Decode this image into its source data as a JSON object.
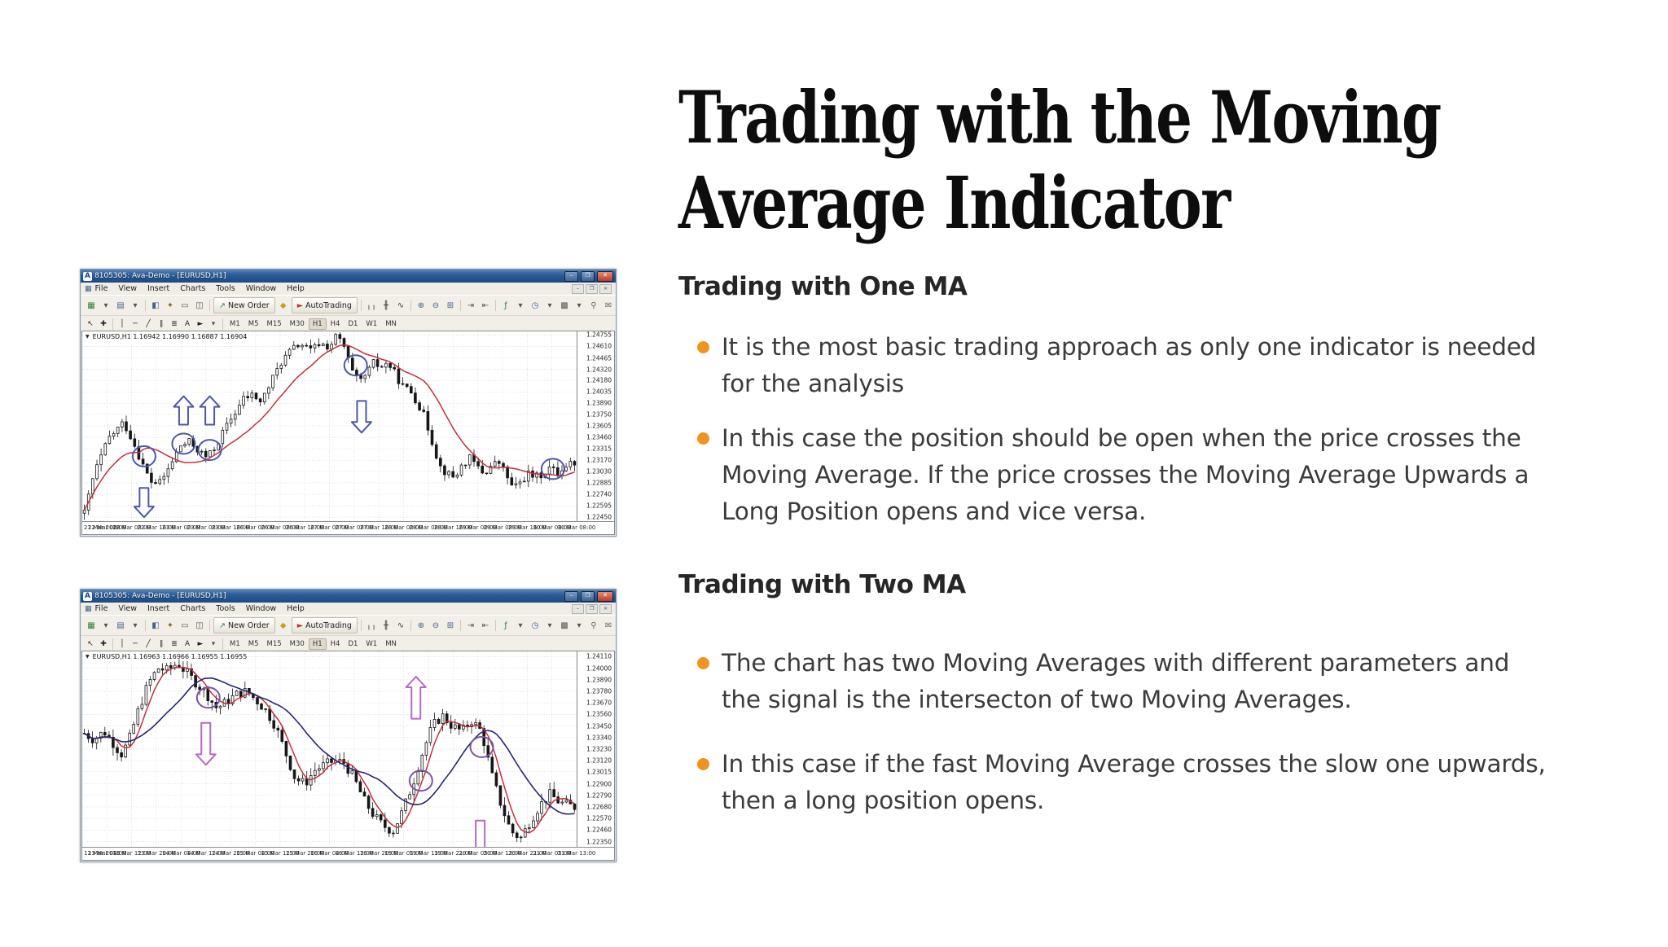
{
  "article": {
    "title": "Trading with the Moving Average Indicator",
    "title_lines": [
      "Trading with the Moving",
      "Average Indicator"
    ],
    "bullet_color": "#f0941f",
    "sections": [
      {
        "heading": "Trading with One MA",
        "bullets": [
          "It is the most basic trading approach as only one indicator is needed for the analysis",
          "In this case the position should be open when the price crosses the Moving Average. If the price crosses the Moving Average Upwards a Long Position opens and vice versa."
        ]
      },
      {
        "heading": "Trading with Two MA",
        "bullets": [
          "The chart has two Moving Averages with different parameters and the signal is the intersecton of two Moving Averages.",
          "In this case if the fast Moving Average crosses the slow one upwards, then a long position opens."
        ]
      }
    ]
  },
  "mt4_common": {
    "menu": [
      "File",
      "View",
      "Insert",
      "Charts",
      "Tools",
      "Window",
      "Help"
    ],
    "mdi_controls": [
      "–",
      "❐",
      "×"
    ],
    "window_controls": [
      "–",
      "❐",
      "×"
    ],
    "timeframes": [
      "M1",
      "M5",
      "M15",
      "M30",
      "H1",
      "H4",
      "D1",
      "W1",
      "MN"
    ],
    "active_timeframe": "H1",
    "toolbar1": [
      {
        "t": "icon",
        "name": "new-chart-icon",
        "glyph": "▦",
        "color": "#2e7d32"
      },
      {
        "t": "icon",
        "name": "dropdown-caret-icon",
        "glyph": "▾",
        "color": "#555555"
      },
      {
        "t": "icon",
        "name": "profiles-icon",
        "glyph": "▤",
        "color": "#44618c"
      },
      {
        "t": "icon",
        "name": "dropdown-caret-icon",
        "glyph": "▾",
        "color": "#555555"
      },
      {
        "t": "sep"
      },
      {
        "t": "icon",
        "name": "market-watch-icon",
        "glyph": "◧",
        "color": "#44618c"
      },
      {
        "t": "icon",
        "name": "navigator-icon",
        "glyph": "✦",
        "color": "#8a6d1c"
      },
      {
        "t": "icon",
        "name": "terminal-icon",
        "glyph": "▭",
        "color": "#555555"
      },
      {
        "t": "icon",
        "name": "strategy-tester-icon",
        "glyph": "◫",
        "color": "#555555"
      },
      {
        "t": "sep"
      },
      {
        "t": "button",
        "name": "new-order-button",
        "label": "New Order",
        "glyph": "↗",
        "glyph_color": "#2e7d32"
      },
      {
        "t": "icon",
        "name": "expert-advisors-icon",
        "glyph": "◆",
        "color": "#c9a21a"
      },
      {
        "t": "button",
        "name": "autotrading-button",
        "label": "AutoTrading",
        "glyph": "►",
        "glyph_color": "#c0392b"
      },
      {
        "t": "sep"
      },
      {
        "t": "icon",
        "name": "bar-chart-icon",
        "glyph": "╷╷",
        "color": "#333333"
      },
      {
        "t": "icon",
        "name": "candlestick-chart-icon",
        "glyph": "╫",
        "color": "#333333"
      },
      {
        "t": "icon",
        "name": "line-chart-icon",
        "glyph": "∿",
        "color": "#333333"
      },
      {
        "t": "sep"
      },
      {
        "t": "icon",
        "name": "zoom-in-icon",
        "glyph": "⊕",
        "color": "#44618c"
      },
      {
        "t": "icon",
        "name": "zoom-out-icon",
        "glyph": "⊖",
        "color": "#44618c"
      },
      {
        "t": "icon",
        "name": "tile-windows-icon",
        "glyph": "⊞",
        "color": "#44618c"
      },
      {
        "t": "sep"
      },
      {
        "t": "icon",
        "name": "auto-scroll-icon",
        "glyph": "⇥",
        "color": "#555555"
      },
      {
        "t": "icon",
        "name": "chart-shift-icon",
        "glyph": "⇤",
        "color": "#555555"
      },
      {
        "t": "sep"
      },
      {
        "t": "icon",
        "name": "indicators-icon",
        "glyph": "ƒ",
        "color": "#2e7d32"
      },
      {
        "t": "icon",
        "name": "dropdown-caret-icon",
        "glyph": "▾",
        "color": "#555555"
      },
      {
        "t": "icon",
        "name": "periods-icon",
        "glyph": "◷",
        "color": "#44618c"
      },
      {
        "t": "icon",
        "name": "dropdown-caret-icon",
        "glyph": "▾",
        "color": "#555555"
      },
      {
        "t": "icon",
        "name": "templates-icon",
        "glyph": "▩",
        "color": "#555555"
      },
      {
        "t": "icon",
        "name": "dropdown-caret-icon",
        "glyph": "▾",
        "color": "#555555"
      },
      {
        "t": "spacer"
      },
      {
        "t": "icon",
        "name": "search-icon",
        "glyph": "⚲",
        "color": "#666666"
      },
      {
        "t": "icon",
        "name": "chat-icon",
        "glyph": "✉",
        "color": "#666666"
      }
    ],
    "toolbar2": [
      {
        "t": "icon",
        "name": "cursor-tool-icon",
        "glyph": "↖",
        "color": "#222222"
      },
      {
        "t": "icon",
        "name": "crosshair-tool-icon",
        "glyph": "✚",
        "color": "#222222"
      },
      {
        "t": "sep"
      },
      {
        "t": "icon",
        "name": "vertical-line-tool-icon",
        "glyph": "│",
        "color": "#222222"
      },
      {
        "t": "icon",
        "name": "horizontal-line-tool-icon",
        "glyph": "─",
        "color": "#222222"
      },
      {
        "t": "icon",
        "name": "trendline-tool-icon",
        "glyph": "╱",
        "color": "#222222"
      },
      {
        "t": "icon",
        "name": "channel-tool-icon",
        "glyph": "∥",
        "color": "#222222"
      },
      {
        "t": "icon",
        "name": "fibonacci-tool-icon",
        "glyph": "≣",
        "color": "#222222"
      },
      {
        "t": "icon",
        "name": "text-tool-icon",
        "glyph": "A",
        "color": "#222222"
      },
      {
        "t": "icon",
        "name": "arrows-tool-icon",
        "glyph": "►",
        "color": "#222222"
      },
      {
        "t": "icon",
        "name": "dropdown-caret-icon",
        "glyph": "▾",
        "color": "#555555"
      },
      {
        "t": "sep"
      }
    ]
  },
  "chart_data": [
    {
      "type": "candlestick",
      "window_title": "8105305: Ava-Demo - [EURUSD,H1]",
      "symbol_line": "EURUSD,H1  1.16942 1.16990 1.16887 1.16904",
      "grid": true,
      "ylim": {
        "top": 1.248,
        "bottom": 1.224
      },
      "yticks": [
        "1.24755",
        "1.24610",
        "1.24465",
        "1.24320",
        "1.24180",
        "1.24035",
        "1.23890",
        "1.23750",
        "1.23605",
        "1.23460",
        "1.23315",
        "1.23170",
        "1.23030",
        "1.22885",
        "1.22740",
        "1.22595",
        "1.22450"
      ],
      "xlabels": [
        "21 Mar 2018",
        "22 Mar 00:00",
        "22 Mar 08:00",
        "22 Mar 16:00",
        "23 Mar 00:00",
        "23 Mar 08:00",
        "23 Mar 16:00",
        "26 Mar 00:00",
        "26 Mar 08:00",
        "26 Mar 16:00",
        "27 Mar 00:00",
        "27 Mar 08:00",
        "27 Mar 16:00",
        "28 Mar 00:00",
        "28 Mar 08:00",
        "28 Mar 16:00",
        "29 Mar 00:00",
        "29 Mar 08:00",
        "29 Mar 16:00",
        "30 Mar 00:00",
        "30 Mar 08:00"
      ],
      "candles": 118,
      "noise": 0.00115,
      "seed": 42,
      "candle_color": "#161616",
      "grid_color": "#d6d6d6",
      "price_keypoints": [
        [
          0.0,
          1.225
        ],
        [
          0.02,
          1.23
        ],
        [
          0.05,
          1.2345
        ],
        [
          0.08,
          1.2365
        ],
        [
          0.1,
          1.234
        ],
        [
          0.12,
          1.231
        ],
        [
          0.135,
          1.229
        ],
        [
          0.155,
          1.2288
        ],
        [
          0.175,
          1.231
        ],
        [
          0.195,
          1.2335
        ],
        [
          0.215,
          1.234
        ],
        [
          0.235,
          1.2328
        ],
        [
          0.25,
          1.232
        ],
        [
          0.265,
          1.2332
        ],
        [
          0.285,
          1.2355
        ],
        [
          0.305,
          1.2375
        ],
        [
          0.325,
          1.2395
        ],
        [
          0.345,
          1.24
        ],
        [
          0.36,
          1.239
        ],
        [
          0.38,
          1.2415
        ],
        [
          0.4,
          1.244
        ],
        [
          0.42,
          1.2455
        ],
        [
          0.44,
          1.2465
        ],
        [
          0.46,
          1.2455
        ],
        [
          0.48,
          1.2465
        ],
        [
          0.5,
          1.246
        ],
        [
          0.515,
          1.2475
        ],
        [
          0.53,
          1.246
        ],
        [
          0.545,
          1.243
        ],
        [
          0.56,
          1.2415
        ],
        [
          0.575,
          1.2425
        ],
        [
          0.59,
          1.244
        ],
        [
          0.605,
          1.2435
        ],
        [
          0.62,
          1.244
        ],
        [
          0.635,
          1.2425
        ],
        [
          0.65,
          1.241
        ],
        [
          0.665,
          1.2405
        ],
        [
          0.68,
          1.239
        ],
        [
          0.695,
          1.237
        ],
        [
          0.71,
          1.234
        ],
        [
          0.725,
          1.231
        ],
        [
          0.74,
          1.23
        ],
        [
          0.755,
          1.2295
        ],
        [
          0.77,
          1.231
        ],
        [
          0.785,
          1.232
        ],
        [
          0.8,
          1.231
        ],
        [
          0.815,
          1.23
        ],
        [
          0.83,
          1.231
        ],
        [
          0.845,
          1.2315
        ],
        [
          0.86,
          1.23
        ],
        [
          0.875,
          1.228
        ],
        [
          0.89,
          1.229
        ],
        [
          0.905,
          1.23
        ],
        [
          0.92,
          1.2295
        ],
        [
          0.935,
          1.23
        ],
        [
          0.95,
          1.2308
        ],
        [
          0.965,
          1.23
        ],
        [
          0.98,
          1.231
        ],
        [
          1.0,
          1.2315
        ]
      ],
      "mas": [
        {
          "name": "Moving Average",
          "period": 14,
          "color": "#c2303e",
          "width": 1.5
        }
      ],
      "annotations": {
        "circle_color": "#4d57a8",
        "arrow_color": "#4d57a8",
        "circles": [
          {
            "x": 0.125,
            "price": 1.2322
          },
          {
            "x": 0.205,
            "price": 1.2338
          },
          {
            "x": 0.258,
            "price": 1.233
          },
          {
            "x": 0.553,
            "price": 1.2437
          },
          {
            "x": 0.952,
            "price": 1.2306
          }
        ],
        "arrows": [
          {
            "x": 0.125,
            "dir": "down",
            "tip": 1.2245,
            "tail": 1.2282
          },
          {
            "x": 0.205,
            "dir": "up",
            "tip": 1.2398,
            "tail": 1.2362
          },
          {
            "x": 0.258,
            "dir": "up",
            "tip": 1.2398,
            "tail": 1.2362
          },
          {
            "x": 0.565,
            "dir": "down",
            "tip": 1.2352,
            "tail": 1.2392
          }
        ]
      }
    },
    {
      "type": "candlestick",
      "window_title": "8105305: Ava-Demo - [EURUSD,H1]",
      "symbol_line": "EURUSD,H1  1.16963 1.16966 1.16955 1.16955",
      "grid": true,
      "ylim": {
        "top": 1.2416,
        "bottom": 1.223
      },
      "yticks": [
        "1.24110",
        "1.24000",
        "1.23890",
        "1.23780",
        "1.23670",
        "1.23560",
        "1.23450",
        "1.23340",
        "1.23230",
        "1.23120",
        "1.23015",
        "1.22900",
        "1.22790",
        "1.22680",
        "1.22570",
        "1.22460",
        "1.22350"
      ],
      "xlabels": [
        "12 Mar 2018",
        "13 Mar 04:00",
        "13 Mar 12:00",
        "13 Mar 20:00",
        "14 Mar 04:00",
        "14 Mar 12:00",
        "14 Mar 20:00",
        "15 Mar 04:00",
        "15 Mar 12:00",
        "15 Mar 20:00",
        "16 Mar 04:00",
        "16 Mar 12:00",
        "16 Mar 20:00",
        "19 Mar 05:00",
        "19 Mar 13:00",
        "19 Mar 21:00",
        "20 Mar 05:00",
        "20 Mar 13:00",
        "20 Mar 21:00",
        "21 Mar 05:00",
        "21 Mar 13:00"
      ],
      "candles": 120,
      "noise": 0.00105,
      "seed": 7,
      "candle_color": "#161616",
      "grid_color": "#d6d6d6",
      "price_keypoints": [
        [
          0.0,
          1.2338
        ],
        [
          0.02,
          1.2332
        ],
        [
          0.04,
          1.234
        ],
        [
          0.06,
          1.2328
        ],
        [
          0.075,
          1.2318
        ],
        [
          0.09,
          1.233
        ],
        [
          0.11,
          1.236
        ],
        [
          0.13,
          1.2385
        ],
        [
          0.15,
          1.24
        ],
        [
          0.17,
          1.2398
        ],
        [
          0.19,
          1.2405
        ],
        [
          0.21,
          1.2395
        ],
        [
          0.23,
          1.2385
        ],
        [
          0.25,
          1.2375
        ],
        [
          0.27,
          1.2362
        ],
        [
          0.29,
          1.2368
        ],
        [
          0.31,
          1.2375
        ],
        [
          0.33,
          1.2378
        ],
        [
          0.35,
          1.237
        ],
        [
          0.37,
          1.236
        ],
        [
          0.39,
          1.2345
        ],
        [
          0.41,
          1.232
        ],
        [
          0.43,
          1.2295
        ],
        [
          0.45,
          1.229
        ],
        [
          0.47,
          1.2303
        ],
        [
          0.49,
          1.2308
        ],
        [
          0.51,
          1.2312
        ],
        [
          0.53,
          1.231
        ],
        [
          0.55,
          1.2295
        ],
        [
          0.57,
          1.2275
        ],
        [
          0.59,
          1.226
        ],
        [
          0.61,
          1.225
        ],
        [
          0.63,
          1.2245
        ],
        [
          0.65,
          1.2265
        ],
        [
          0.67,
          1.229
        ],
        [
          0.69,
          1.232
        ],
        [
          0.71,
          1.2345
        ],
        [
          0.73,
          1.2355
        ],
        [
          0.75,
          1.2345
        ],
        [
          0.77,
          1.234
        ],
        [
          0.79,
          1.235
        ],
        [
          0.81,
          1.234
        ],
        [
          0.83,
          1.23
        ],
        [
          0.85,
          1.227
        ],
        [
          0.87,
          1.2245
        ],
        [
          0.89,
          1.2238
        ],
        [
          0.91,
          1.2255
        ],
        [
          0.93,
          1.227
        ],
        [
          0.95,
          1.228
        ],
        [
          0.97,
          1.2272
        ],
        [
          1.0,
          1.2268
        ]
      ],
      "mas": [
        {
          "name": "Fast Moving Average",
          "period": 5,
          "color": "#c2303e",
          "width": 1.5
        },
        {
          "name": "Slow Moving Average",
          "period": 17,
          "color": "#26276e",
          "width": 1.6
        }
      ],
      "annotations": {
        "circle_color": "#7a55a3",
        "arrow_color": "#b569c5",
        "circles": [
          {
            "x": 0.255,
            "price": 1.2372
          },
          {
            "x": 0.685,
            "price": 1.2293
          },
          {
            "x": 0.808,
            "price": 1.2325
          }
        ],
        "arrows": [
          {
            "x": 0.25,
            "dir": "down",
            "tip": 1.2308,
            "tail": 1.2348
          },
          {
            "x": 0.675,
            "dir": "up",
            "tip": 1.2392,
            "tail": 1.2352
          },
          {
            "x": 0.805,
            "dir": "down",
            "tip": 1.2212,
            "tail": 1.2255
          }
        ]
      }
    }
  ]
}
